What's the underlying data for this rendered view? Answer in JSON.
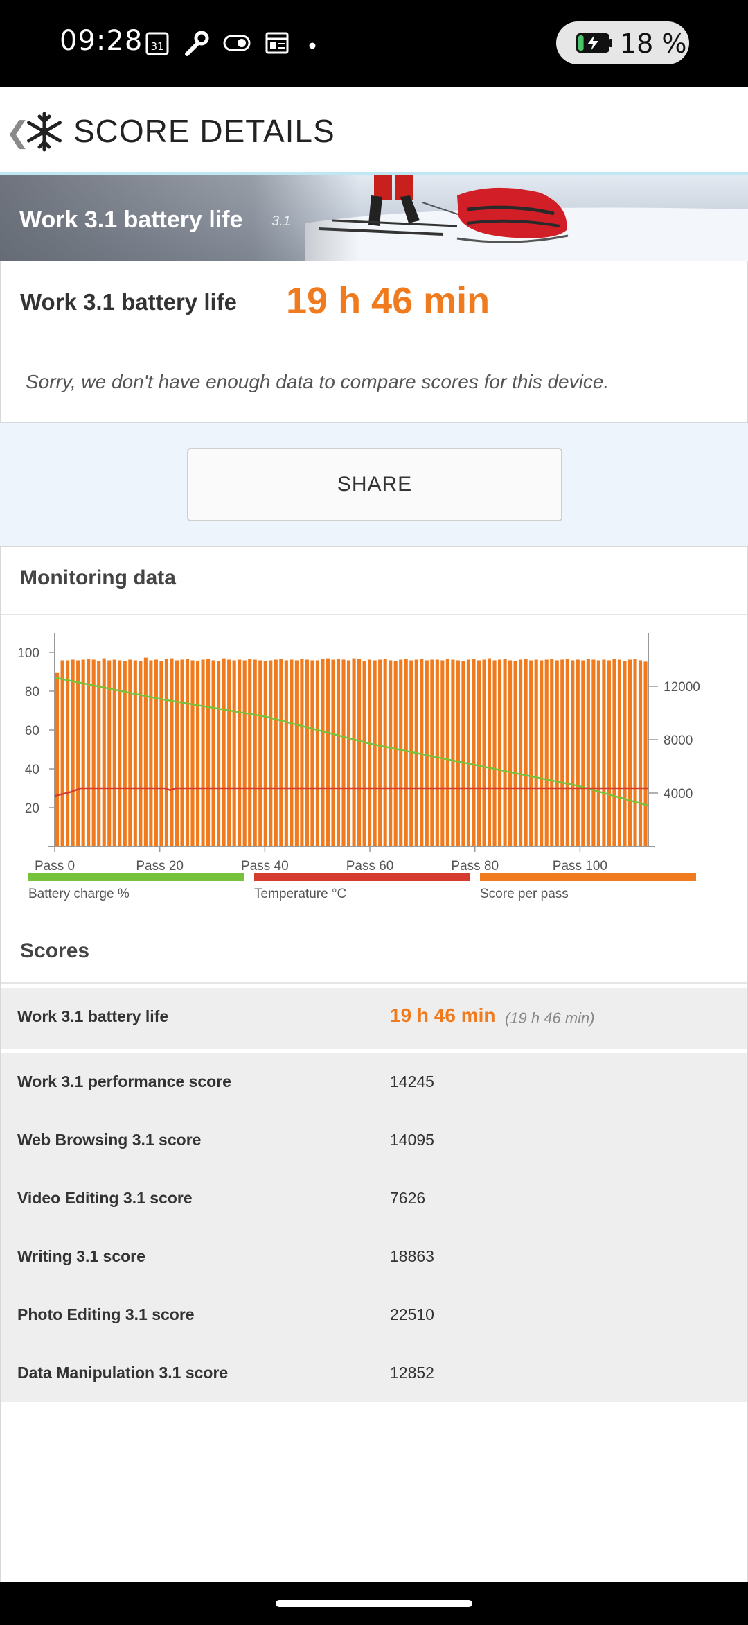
{
  "status_bar": {
    "time": "09:28",
    "calendar_day": "31",
    "battery_percent": "18 %",
    "battery_level": 0.18,
    "icons": [
      "calendar-icon",
      "wrench-icon",
      "toggle-icon",
      "news-icon",
      "dot-icon",
      "battery-charging-icon"
    ]
  },
  "app_bar": {
    "title": "SCORE DETAILS",
    "back_icon": "chevron-left-icon",
    "logo_icon": "snowflake-icon"
  },
  "hero": {
    "title": "Work 3.1 battery life",
    "version": "3.1"
  },
  "result": {
    "label": "Work 3.1 battery life",
    "value": "19 h 46 min"
  },
  "compare_note": "Sorry, we don't have enough data to compare scores for this device.",
  "share_label": "SHARE",
  "monitoring": {
    "title": "Monitoring data"
  },
  "chart_data": {
    "type": "bar",
    "x_tick_labels": [
      "Pass 0",
      "Pass 20",
      "Pass 40",
      "Pass 60",
      "Pass 80",
      "Pass 100"
    ],
    "x_ticks": [
      0,
      20,
      40,
      60,
      80,
      100
    ],
    "xlim": [
      0,
      113
    ],
    "left_axis": {
      "ticks": [
        20,
        40,
        60,
        80,
        100
      ],
      "ylim": [
        0,
        110
      ]
    },
    "right_axis": {
      "ticks": [
        4000,
        8000,
        12000
      ],
      "ylim": [
        0,
        16000
      ]
    },
    "series": [
      {
        "name": "Score per pass",
        "type": "bar",
        "axis": "right",
        "color": "#f07b1f",
        "values": [
          13000,
          13950,
          13950,
          14000,
          13950,
          14000,
          14050,
          14000,
          13900,
          14100,
          13950,
          14000,
          13950,
          13900,
          14000,
          13950,
          13900,
          14150,
          13950,
          14000,
          13900,
          14050,
          14100,
          13950,
          14000,
          14050,
          13950,
          13900,
          14000,
          14050,
          13950,
          13900,
          14100,
          14000,
          13950,
          14000,
          13950,
          14050,
          14000,
          13950,
          13900,
          13950,
          14000,
          14050,
          13950,
          14000,
          13950,
          14050,
          14000,
          13950,
          13950,
          14050,
          14100,
          14000,
          14050,
          14000,
          13950,
          14100,
          14050,
          13900,
          14000,
          13950,
          14000,
          14050,
          13950,
          13900,
          14000,
          14050,
          13950,
          14000,
          14050,
          13950,
          14000,
          14000,
          13950,
          14050,
          14000,
          13950,
          13900,
          14000,
          14050,
          13950,
          14000,
          14100,
          13950,
          14000,
          14050,
          13950,
          13900,
          14000,
          14050,
          13950,
          14000,
          13950,
          14000,
          14050,
          13950,
          14000,
          14050,
          13950,
          14000,
          13950,
          14050,
          14000,
          13950,
          14000,
          13950,
          14050,
          14000,
          13900,
          14000,
          14050,
          13950,
          13850
        ]
      },
      {
        "name": "Battery charge %",
        "type": "line",
        "axis": "left",
        "color": "#77c23b",
        "points": [
          [
            0,
            87
          ],
          [
            20,
            76
          ],
          [
            40,
            67
          ],
          [
            60,
            53
          ],
          [
            80,
            42
          ],
          [
            100,
            31
          ],
          [
            113,
            21
          ]
        ]
      },
      {
        "name": "Temperature °C",
        "type": "line",
        "axis": "left",
        "color": "#d63b2f",
        "points": [
          [
            0,
            26
          ],
          [
            3,
            28
          ],
          [
            5,
            30
          ],
          [
            21,
            30
          ],
          [
            22,
            29
          ],
          [
            23,
            30
          ],
          [
            113,
            30
          ]
        ]
      }
    ]
  },
  "legend": [
    {
      "label": "Battery charge %",
      "color": "#77c23b"
    },
    {
      "label": "Temperature °C",
      "color": "#d63b2f"
    },
    {
      "label": "Score per pass",
      "color": "#f07b1f"
    }
  ],
  "scores": {
    "title": "Scores",
    "rows": [
      {
        "name": "Work 3.1 battery life",
        "value": "19 h 46 min",
        "sub": "(19 h 46 min)"
      },
      {
        "name": "Work 3.1 performance score",
        "value": "14245"
      },
      {
        "name": "Web Browsing 3.1 score",
        "value": "14095"
      },
      {
        "name": "Video Editing 3.1 score",
        "value": "7626"
      },
      {
        "name": "Writing 3.1 score",
        "value": "18863"
      },
      {
        "name": "Photo Editing 3.1 score",
        "value": "22510"
      },
      {
        "name": "Data Manipulation 3.1 score",
        "value": "12852"
      }
    ]
  }
}
